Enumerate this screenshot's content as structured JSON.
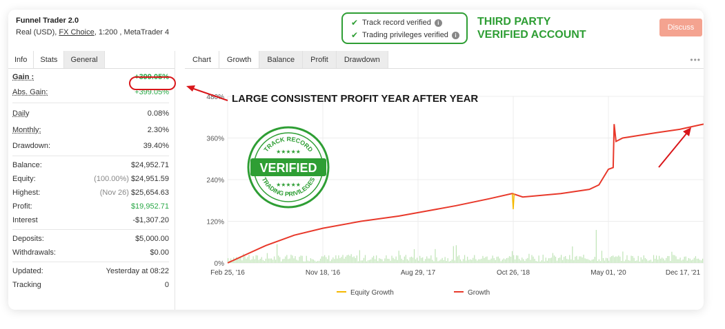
{
  "header": {
    "account_name": "Funnel Trader 2.0",
    "meta_prefix": "Real (USD),",
    "broker": "FX Choice",
    "meta_suffix": ", 1:200 , MetaTrader 4",
    "verifications": [
      {
        "label": "Track record verified"
      },
      {
        "label": "Trading privileges verified"
      }
    ],
    "third_party_line1": "THIRD PARTY",
    "third_party_line2": "VERIFIED ACCOUNT",
    "discuss_label": "Discuss"
  },
  "left_tabs": [
    "Info",
    "Stats",
    "General"
  ],
  "stats": {
    "gain": {
      "label": "Gain :",
      "value": "+399.05%"
    },
    "abs_gain": {
      "label": "Abs. Gain:",
      "value": "+399.05%"
    },
    "daily": {
      "label": "Daily",
      "value": "0.08%"
    },
    "monthly": {
      "label": "Monthly:",
      "value": "2.30%"
    },
    "drawdown": {
      "label": "Drawdown:",
      "value": "39.40%"
    },
    "balance": {
      "label": "Balance:",
      "value": "$24,952.71"
    },
    "equity": {
      "label": "Equity:",
      "sub": "(100.00%)",
      "value": "$24,951.59"
    },
    "highest": {
      "label": "Highest:",
      "sub": "(Nov 26)",
      "value": "$25,654.63"
    },
    "profit": {
      "label": "Profit:",
      "value": "$19,952.71"
    },
    "interest": {
      "label": "Interest",
      "value": "-$1,307.20"
    },
    "deposits": {
      "label": "Deposits:",
      "value": "$5,000.00"
    },
    "withdrawals": {
      "label": "Withdrawals:",
      "value": "$0.00"
    },
    "updated": {
      "label": "Updated:",
      "value": "Yesterday at 08:22"
    },
    "tracking": {
      "label": "Tracking",
      "value": "0"
    }
  },
  "right_tabs": [
    "Chart",
    "Growth",
    "Balance",
    "Profit",
    "Drawdown"
  ],
  "more_icon": "more-dots-icon",
  "annotation": "LARGE CONSISTENT PROFIT YEAR AFTER YEAR",
  "stamp": {
    "top": "TRACK RECORD",
    "middle": "VERIFIED",
    "bottom": "TRADING PRIVILEGES",
    "stars": "★★★★★"
  },
  "colors": {
    "accent_green": "#2e9e34",
    "growth_line": "#e8382a",
    "equity_line": "#f5b800",
    "annotation_red": "#d9161a",
    "discuss_bg": "#f4a390"
  },
  "chart_data": {
    "type": "line",
    "x_ticks": [
      "Feb 25, '16",
      "Nov 18, '16",
      "Aug 29, '17",
      "Oct 26, '18",
      "May 01, '20",
      "Dec 17, '21"
    ],
    "y_ticks": [
      "0%",
      "120%",
      "240%",
      "360%",
      "480%"
    ],
    "ylim": [
      0,
      480
    ],
    "legend": [
      "Equity Growth",
      "Growth"
    ],
    "series": [
      {
        "name": "Growth",
        "x": [
          0,
          0.04,
          0.08,
          0.14,
          0.2,
          0.28,
          0.36,
          0.42,
          0.48,
          0.55,
          0.6,
          0.605,
          0.62,
          0.7,
          0.76,
          0.8,
          0.82,
          0.84,
          0.86,
          0.88,
          0.895,
          0.81,
          0.815,
          0.82,
          0.83,
          0.9,
          0.95,
          1.0
        ],
        "y": [
          0,
          25,
          50,
          80,
          100,
          120,
          135,
          150,
          165,
          185,
          200,
          195,
          190,
          200,
          215,
          225,
          240,
          260,
          270,
          275,
          275,
          400,
          355,
          355,
          360,
          375,
          385,
          400
        ]
      },
      {
        "name": "Equity Growth",
        "x": [
          0.598,
          0.6,
          0.602
        ],
        "y": [
          200,
          155,
          200
        ]
      }
    ]
  }
}
